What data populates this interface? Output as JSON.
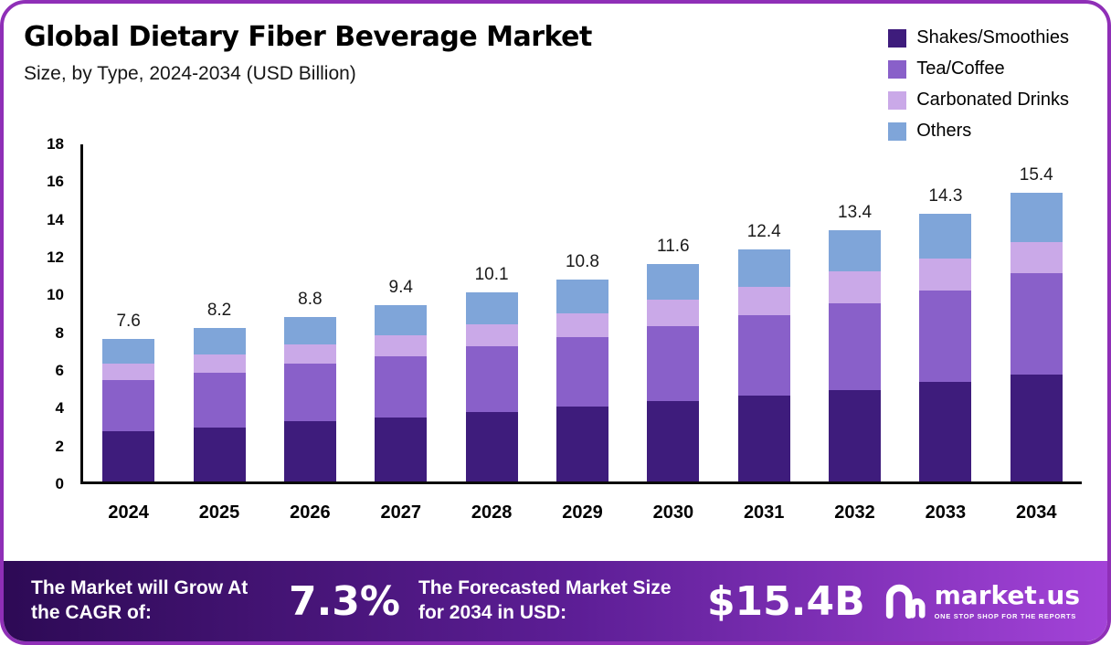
{
  "header": {
    "title": "Global Dietary Fiber Beverage Market",
    "subtitle": "Size, by Type, 2024-2034 (USD Billion)"
  },
  "legend": {
    "items": [
      {
        "label": "Shakes/Smoothies",
        "color": "#3e1c7c"
      },
      {
        "label": "Tea/Coffee",
        "color": "#8960c9"
      },
      {
        "label": "Carbonated Drinks",
        "color": "#caa9e8"
      },
      {
        "label": "Others",
        "color": "#7fa5d9"
      }
    ]
  },
  "chart_data": {
    "type": "bar",
    "stacked": true,
    "title": "Global Dietary Fiber Beverage Market Size, by Type, 2024-2034 (USD Billion)",
    "categories": [
      "2024",
      "2025",
      "2026",
      "2027",
      "2028",
      "2029",
      "2030",
      "2031",
      "2032",
      "2033",
      "2034"
    ],
    "series": [
      {
        "name": "Shakes/Smoothies",
        "color": "#3e1c7c",
        "values": [
          2.7,
          2.9,
          3.2,
          3.4,
          3.7,
          4.0,
          4.3,
          4.6,
          4.9,
          5.3,
          5.7
        ]
      },
      {
        "name": "Tea/Coffee",
        "color": "#8960c9",
        "values": [
          2.7,
          2.9,
          3.1,
          3.3,
          3.5,
          3.7,
          4.0,
          4.3,
          4.6,
          4.9,
          5.4
        ]
      },
      {
        "name": "Carbonated Drinks",
        "color": "#caa9e8",
        "values": [
          0.9,
          1.0,
          1.0,
          1.1,
          1.2,
          1.3,
          1.4,
          1.5,
          1.7,
          1.7,
          1.7
        ]
      },
      {
        "name": "Others",
        "color": "#7fa5d9",
        "values": [
          1.3,
          1.4,
          1.5,
          1.6,
          1.7,
          1.8,
          1.9,
          2.0,
          2.2,
          2.4,
          2.6
        ]
      }
    ],
    "totals": [
      7.6,
      8.2,
      8.8,
      9.4,
      10.1,
      10.8,
      11.6,
      12.4,
      13.4,
      14.3,
      15.4
    ],
    "xlabel": "",
    "ylabel": "",
    "ylim": [
      0,
      18
    ],
    "yticks": [
      0,
      2,
      4,
      6,
      8,
      10,
      12,
      14,
      16,
      18
    ],
    "grid": false,
    "legend_position": "top-right"
  },
  "footer": {
    "cagr_label": "The Market will Grow At the CAGR of:",
    "cagr_value": "7.3%",
    "forecast_label": "The Forecasted Market Size for 2034 in USD:",
    "forecast_value": "$15.4B",
    "brand": "market.us",
    "brand_tagline": "ONE STOP SHOP FOR THE REPORTS"
  }
}
